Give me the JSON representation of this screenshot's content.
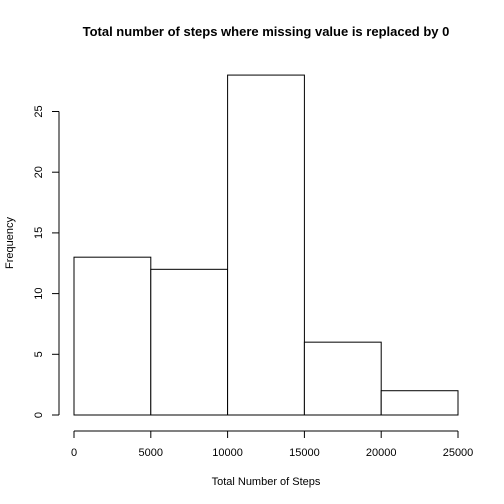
{
  "chart_data": {
    "type": "bar",
    "title": "Total number of steps where missing value is replaced by 0",
    "xlabel": "Total Number of Steps",
    "ylabel": "Frequency",
    "bins": [
      {
        "start": 0,
        "end": 5000,
        "count": 13
      },
      {
        "start": 5000,
        "end": 10000,
        "count": 12
      },
      {
        "start": 10000,
        "end": 15000,
        "count": 28
      },
      {
        "start": 15000,
        "end": 20000,
        "count": 6
      },
      {
        "start": 20000,
        "end": 25000,
        "count": 2
      }
    ],
    "xlim": [
      0,
      25000
    ],
    "ylim": [
      0,
      28
    ],
    "xticks": [
      0,
      5000,
      10000,
      15000,
      20000,
      25000
    ],
    "yticks": [
      0,
      5,
      10,
      15,
      20,
      25
    ],
    "grid": false,
    "legend": "none"
  }
}
